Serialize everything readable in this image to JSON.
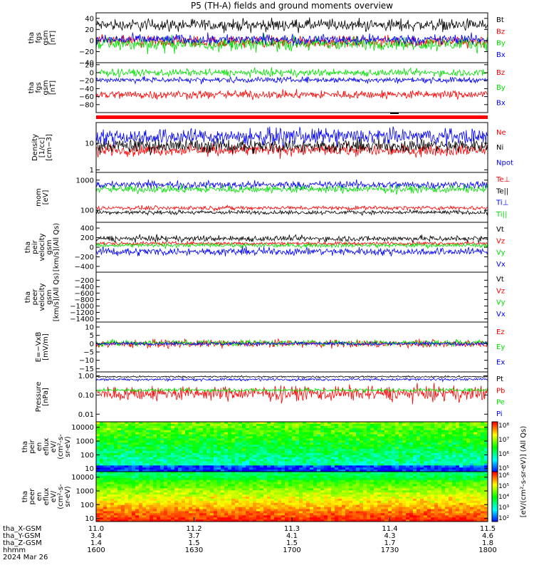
{
  "title": "P5 (TH-A) fields and ground moments overview",
  "colors": {
    "black": "#000000",
    "red": "#ff0000",
    "green": "#00e000",
    "blue": "#0000ff"
  },
  "chart_data": [
    {
      "type": "line",
      "id": "fgs",
      "ylabel_lines": [
        "tha",
        "fgs",
        "gsm",
        "[nT]"
      ],
      "ylim": [
        -40,
        50
      ],
      "ticks": [
        40,
        20,
        0,
        -20,
        -40
      ],
      "tick_labels": [
        "40",
        "20",
        "0",
        "−20",
        "−40"
      ],
      "legend": [
        "Bt",
        "Bz",
        "By",
        "Bx"
      ],
      "series": [
        {
          "name": "Bt",
          "color": "black",
          "mean": 28,
          "amp": 12
        },
        {
          "name": "Bz",
          "color": "red",
          "mean": -2,
          "amp": 12
        },
        {
          "name": "By",
          "color": "green",
          "mean": -6,
          "amp": 14
        },
        {
          "name": "Bx",
          "color": "blue",
          "mean": 2,
          "amp": 10
        }
      ]
    },
    {
      "type": "line",
      "id": "fgs2",
      "ylabel_lines": [
        "tha",
        "fgs",
        "gsm",
        "[nT]"
      ],
      "ylim": [
        -100,
        25
      ],
      "ticks": [
        20,
        0,
        -20,
        -40,
        -60,
        -80
      ],
      "tick_labels": [
        "20",
        "0",
        "−20",
        "−40",
        "−60",
        "−80"
      ],
      "legend": [
        "Bz",
        "By",
        "Bx"
      ],
      "series": [
        {
          "name": "Bz",
          "color": "red",
          "mean": -55,
          "amp": 12
        },
        {
          "name": "By",
          "color": "green",
          "mean": 0,
          "amp": 10
        },
        {
          "name": "Bx",
          "color": "blue",
          "mean": -18,
          "amp": 8
        }
      ]
    },
    {
      "type": "line",
      "id": "density",
      "ylabel_lines": [
        "Density",
        "[1/cc]",
        "[cm−3]"
      ],
      "log": true,
      "ylim": [
        0.8,
        60
      ],
      "ticks": [
        10,
        1
      ],
      "tick_labels": [
        "10",
        "1"
      ],
      "legend": [
        "Ne",
        "Ni",
        "Npot"
      ],
      "series": [
        {
          "name": "Ne",
          "color": "red",
          "mean": 5.5,
          "amp": 0.25
        },
        {
          "name": "Ni",
          "color": "black",
          "mean": 8,
          "amp": 0.3
        },
        {
          "name": "Npot",
          "color": "blue",
          "mean": 18,
          "amp": 0.35
        }
      ]
    },
    {
      "type": "line",
      "id": "temp",
      "ylabel_lines": [
        "mom",
        "[eV]"
      ],
      "log": true,
      "ylim": [
        40,
        1800
      ],
      "ticks": [
        1000,
        100
      ],
      "tick_labels": [
        "1000",
        "100"
      ],
      "legend": [
        "Te⊥",
        "Te||",
        "Ti⊥",
        "Ti||"
      ],
      "series": [
        {
          "name": "Te⊥",
          "color": "red",
          "mean": 120,
          "amp": 0.08
        },
        {
          "name": "Te||",
          "color": "black",
          "mean": 85,
          "amp": 0.08
        },
        {
          "name": "Ti⊥",
          "color": "blue",
          "mean": 700,
          "amp": 0.15
        },
        {
          "name": "Ti||",
          "color": "green",
          "mean": 500,
          "amp": 0.15
        }
      ]
    },
    {
      "type": "line",
      "id": "peirvel",
      "ylabel_lines": [
        "tha",
        "peir",
        "velocity",
        "gsm",
        "[km/s](All Qs)"
      ],
      "ylim": [
        -520,
        520
      ],
      "ticks": [
        400,
        200,
        0,
        -200,
        -400
      ],
      "tick_labels": [
        "400",
        "200",
        "0",
        "−200",
        "−400"
      ],
      "legend": [
        "Vt",
        "Vz",
        "Vy",
        "Vx"
      ],
      "series": [
        {
          "name": "Vt",
          "color": "black",
          "mean": 180,
          "amp": 70
        },
        {
          "name": "Vz",
          "color": "red",
          "mean": 80,
          "amp": 40
        },
        {
          "name": "Vy",
          "color": "green",
          "mean": 40,
          "amp": 50
        },
        {
          "name": "Vx",
          "color": "blue",
          "mean": -90,
          "amp": 90
        }
      ]
    },
    {
      "type": "line",
      "id": "peervel",
      "ylabel_lines": [
        "tha",
        "peer",
        "velocity",
        "gsm",
        "[km/s](All Qs)"
      ],
      "ylim": [
        -1500,
        50
      ],
      "ticks": [
        -200,
        -400,
        -600,
        -800,
        -1000,
        -1200,
        -1400
      ],
      "tick_labels": [
        "−200",
        "−400",
        "−600",
        "−800",
        "−1000",
        "−1200",
        "−1400"
      ],
      "legend": [
        "Vt",
        "Vz",
        "Vy",
        "Vx"
      ],
      "series": []
    },
    {
      "type": "line",
      "id": "efield",
      "ylabel_lines": [
        "E=−VxB",
        "[mV/m]"
      ],
      "ylim": [
        -17,
        13
      ],
      "ticks": [
        10,
        5,
        0,
        -5,
        -10,
        -15
      ],
      "tick_labels": [
        "10",
        "5",
        "0",
        "−5",
        "−10",
        "−15"
      ],
      "legend": [
        "Ez",
        "Ey",
        "Ex"
      ],
      "series": [
        {
          "name": "Ez",
          "color": "red",
          "mean": 0,
          "amp": 2.5
        },
        {
          "name": "Ey",
          "color": "green",
          "mean": 0.5,
          "amp": 2
        },
        {
          "name": "Ex",
          "color": "blue",
          "mean": 0,
          "amp": 1.2
        }
      ]
    },
    {
      "type": "line",
      "id": "pressure",
      "ylabel_lines": [
        "Pressure",
        "[nPa]"
      ],
      "log": true,
      "ylim": [
        0.004,
        1.6
      ],
      "ticks": [
        1,
        0.1,
        0.01
      ],
      "tick_labels": [
        "1.00",
        "0.10",
        "0.01"
      ],
      "legend": [
        "Pt",
        "Pb",
        "Pe",
        "Pi"
      ],
      "series": [
        {
          "name": "Pt",
          "color": "black",
          "mean": 0.9,
          "amp": 0.05
        },
        {
          "name": "Pb",
          "color": "red",
          "mean": 0.12,
          "amp": 0.45
        },
        {
          "name": "Pe",
          "color": "green",
          "mean": 0.18,
          "amp": 0.1
        },
        {
          "name": "Pi",
          "color": "blue",
          "mean": 0.65,
          "amp": 0.08
        }
      ]
    },
    {
      "type": "heatmap",
      "id": "peir_en",
      "ylabel_lines": [
        "tha",
        "peir",
        "en",
        "eflux",
        "eV/",
        "(cm^2-s-",
        "sr-eV)"
      ],
      "log": true,
      "ylim": [
        6,
        25000
      ],
      "ticks": [
        10000,
        1000,
        100,
        10
      ],
      "tick_labels": [
        "10000",
        "1000",
        "100",
        "10"
      ]
    },
    {
      "type": "heatmap",
      "id": "peer_en",
      "ylabel_lines": [
        "tha",
        "peer",
        "en",
        "eflux",
        "eV/",
        "(cm^2-s-",
        "sr-eV)"
      ],
      "log": true,
      "ylim": [
        6,
        25000
      ],
      "ticks": [
        10000,
        1000,
        100,
        10
      ],
      "tick_labels": [
        "10000",
        "1000",
        "100",
        "10"
      ]
    }
  ],
  "colorbar": {
    "label": "[eV/(cm^2-s-sr-eV)] (All Qs)",
    "upper_ticks": [
      "10^8",
      "10^7",
      "10^6",
      "10^5"
    ],
    "lower_ticks": [
      "10^6",
      "10^5",
      "10^4",
      "10^3",
      "10^2"
    ]
  },
  "xaxis": {
    "row_labels": [
      "tha_X-GSM",
      "tha_Y-GSM",
      "tha_Z-GSM",
      "hhmm"
    ],
    "date": "2024 Mar 26",
    "ticks": [
      {
        "v": [
          "11.0",
          "3.4",
          "1.4",
          "1600"
        ]
      },
      {
        "v": [
          "11.2",
          "3.7",
          "1.5",
          "1630"
        ]
      },
      {
        "v": [
          "11.3",
          "4.1",
          "1.5",
          "1700"
        ]
      },
      {
        "v": [
          "11.4",
          "4.3",
          "1.7",
          "1730"
        ]
      },
      {
        "v": [
          "11.5",
          "4.6",
          "1.8",
          "1800"
        ]
      }
    ]
  }
}
